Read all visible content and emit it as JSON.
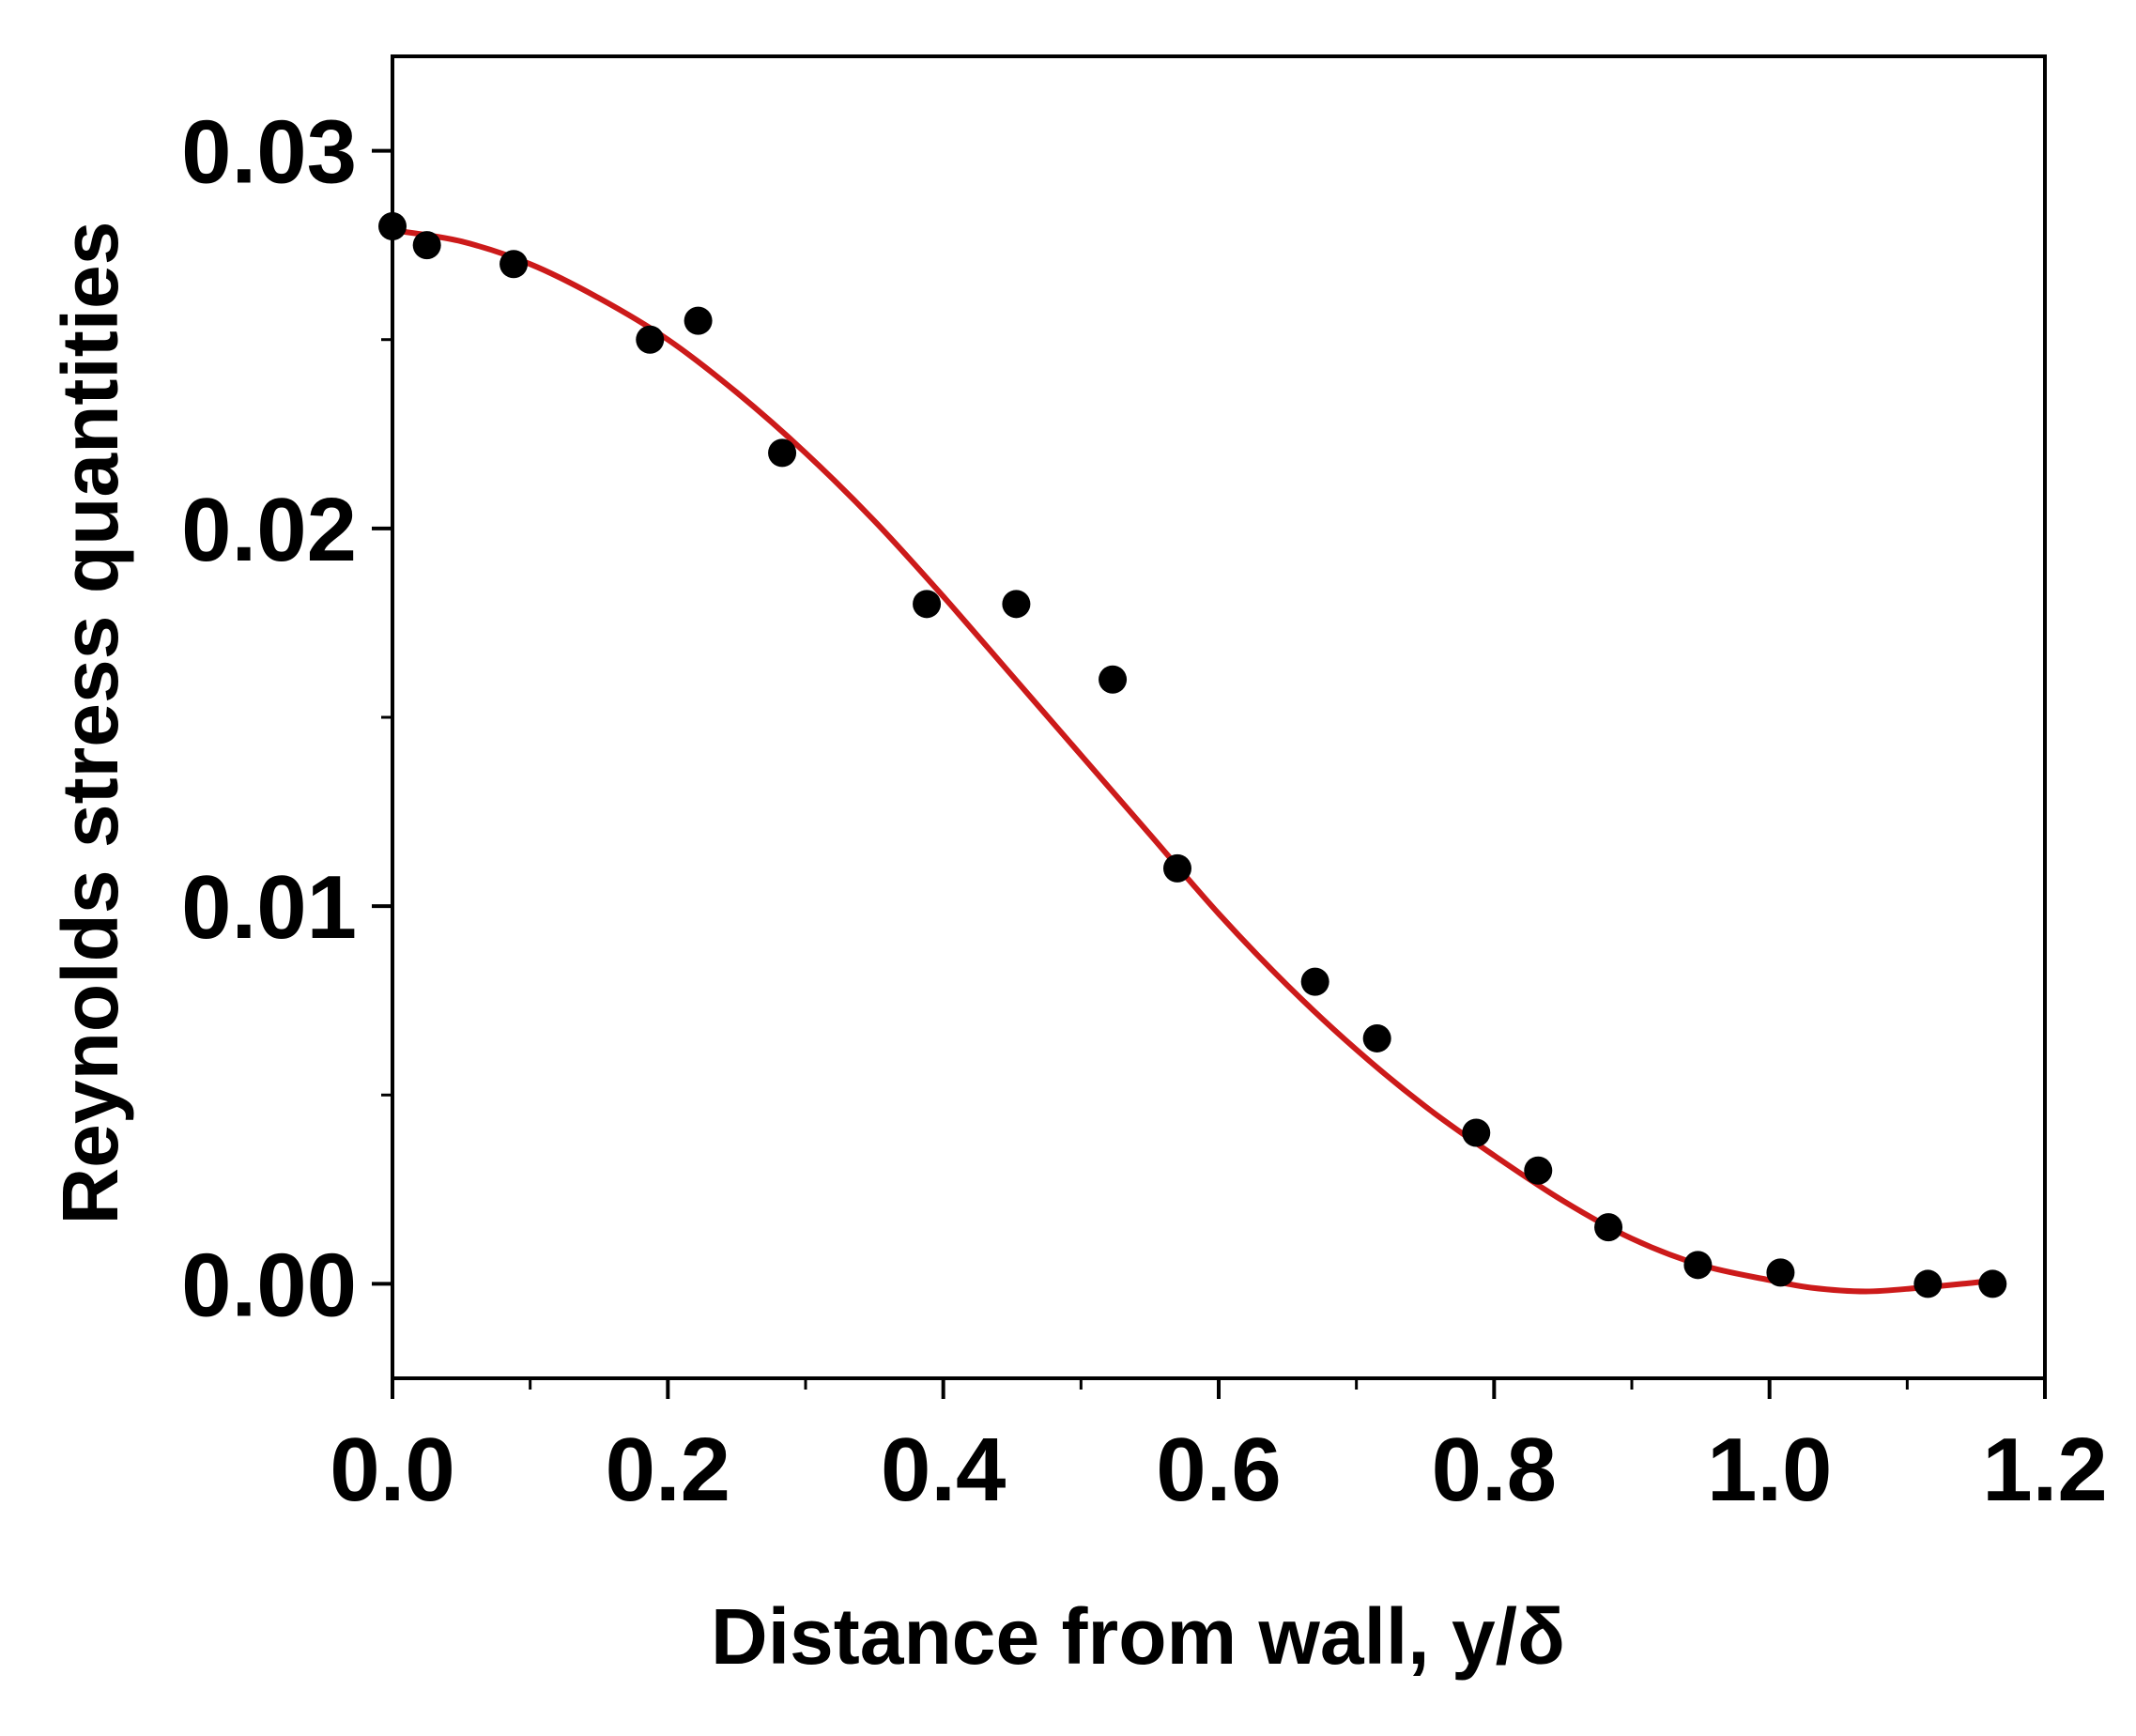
{
  "chart_data": {
    "type": "scatter",
    "title": "",
    "xlabel": "Distance from wall, y/δ",
    "ylabel": "Reynolds stress quantities",
    "xlim": [
      0.0,
      1.2
    ],
    "ylim": [
      -0.0025,
      0.0325
    ],
    "x_ticks": [
      {
        "value": 0.0,
        "label": "0.0"
      },
      {
        "value": 0.2,
        "label": "0.2"
      },
      {
        "value": 0.4,
        "label": "0.4"
      },
      {
        "value": 0.6,
        "label": "0.6"
      },
      {
        "value": 0.8,
        "label": "0.8"
      },
      {
        "value": 1.0,
        "label": "1.0"
      },
      {
        "value": 1.2,
        "label": "1.2"
      }
    ],
    "x_minor_ticks": [
      0.1,
      0.3,
      0.5,
      0.7,
      0.9,
      1.1
    ],
    "y_ticks": [
      {
        "value": 0.0,
        "label": "0.00"
      },
      {
        "value": 0.01,
        "label": "0.01"
      },
      {
        "value": 0.02,
        "label": "0.02"
      },
      {
        "value": 0.03,
        "label": "0.03"
      }
    ],
    "y_minor_ticks": [
      0.005,
      0.015,
      0.025
    ],
    "grid": false,
    "legend": "none",
    "series": [
      {
        "type": "scatter",
        "color": "#000000",
        "points": [
          {
            "x": 0.0,
            "y": 0.028
          },
          {
            "x": 0.025,
            "y": 0.0275
          },
          {
            "x": 0.088,
            "y": 0.027
          },
          {
            "x": 0.187,
            "y": 0.025
          },
          {
            "x": 0.222,
            "y": 0.0255
          },
          {
            "x": 0.283,
            "y": 0.022
          },
          {
            "x": 0.388,
            "y": 0.018
          },
          {
            "x": 0.453,
            "y": 0.018
          },
          {
            "x": 0.523,
            "y": 0.016
          },
          {
            "x": 0.57,
            "y": 0.011
          },
          {
            "x": 0.67,
            "y": 0.008
          },
          {
            "x": 0.715,
            "y": 0.0065
          },
          {
            "x": 0.787,
            "y": 0.004
          },
          {
            "x": 0.832,
            "y": 0.003
          },
          {
            "x": 0.883,
            "y": 0.0015
          },
          {
            "x": 0.948,
            "y": 0.0005
          },
          {
            "x": 1.008,
            "y": 0.0003
          },
          {
            "x": 1.115,
            "y": 0.0
          },
          {
            "x": 1.162,
            "y": 0.0
          }
        ]
      },
      {
        "type": "line",
        "color": "#cc1a1a",
        "points": [
          {
            "x": 0.0,
            "y": 0.0279
          },
          {
            "x": 0.05,
            "y": 0.0276
          },
          {
            "x": 0.1,
            "y": 0.027
          },
          {
            "x": 0.15,
            "y": 0.0261
          },
          {
            "x": 0.2,
            "y": 0.025
          },
          {
            "x": 0.25,
            "y": 0.0236
          },
          {
            "x": 0.3,
            "y": 0.022
          },
          {
            "x": 0.35,
            "y": 0.0202
          },
          {
            "x": 0.4,
            "y": 0.0182
          },
          {
            "x": 0.45,
            "y": 0.0161
          },
          {
            "x": 0.5,
            "y": 0.014
          },
          {
            "x": 0.55,
            "y": 0.0119
          },
          {
            "x": 0.6,
            "y": 0.0098
          },
          {
            "x": 0.65,
            "y": 0.0079
          },
          {
            "x": 0.7,
            "y": 0.0062
          },
          {
            "x": 0.75,
            "y": 0.0047
          },
          {
            "x": 0.8,
            "y": 0.0034
          },
          {
            "x": 0.85,
            "y": 0.0022
          },
          {
            "x": 0.9,
            "y": 0.0012
          },
          {
            "x": 0.95,
            "y": 0.0005
          },
          {
            "x": 1.0,
            "y": 0.0001
          },
          {
            "x": 1.03,
            "y": -0.0001
          },
          {
            "x": 1.07,
            "y": -0.0002
          },
          {
            "x": 1.11,
            "y": -0.0001
          },
          {
            "x": 1.14,
            "y": 0.0
          },
          {
            "x": 1.165,
            "y": 0.0001
          }
        ]
      }
    ]
  }
}
